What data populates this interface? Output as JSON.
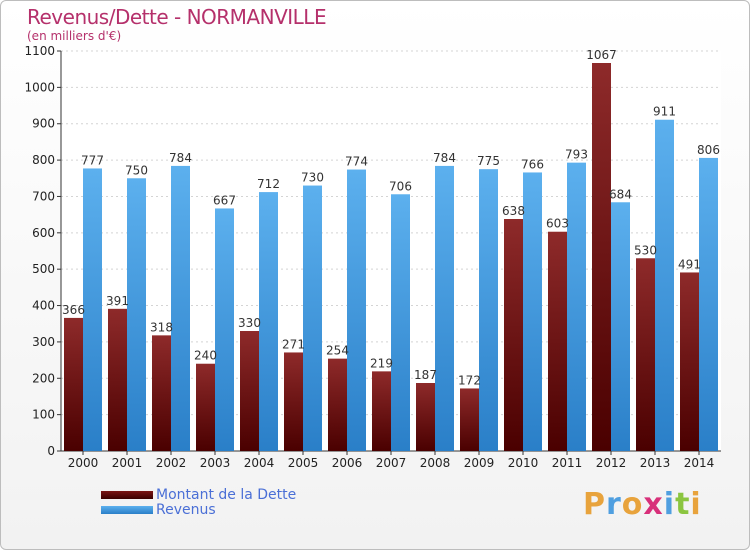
{
  "chart_data": {
    "type": "bar",
    "title": "Revenus/Dette - NORMANVILLE",
    "subtitle": "(en milliers d'€)",
    "categories": [
      "2000",
      "2001",
      "2002",
      "2003",
      "2004",
      "2005",
      "2006",
      "2007",
      "2008",
      "2009",
      "2010",
      "2011",
      "2012",
      "2013",
      "2014"
    ],
    "series": [
      {
        "name": "Montant de la Dette",
        "color": "#7a1515",
        "values": [
          366,
          391,
          318,
          240,
          330,
          271,
          254,
          219,
          187,
          172,
          638,
          603,
          1067,
          530,
          491
        ]
      },
      {
        "name": "Revenus",
        "color": "#4aa3e6",
        "values": [
          777,
          750,
          784,
          667,
          712,
          730,
          774,
          706,
          784,
          775,
          766,
          793,
          684,
          911,
          806
        ]
      }
    ],
    "ylim": [
      0,
      1100
    ],
    "yticks": [
      0,
      100,
      200,
      300,
      400,
      500,
      600,
      700,
      800,
      900,
      1000,
      1100
    ],
    "grid": true,
    "legend": "bottom-left"
  },
  "logo": {
    "letters": [
      {
        "ch": "P",
        "color": "#e8a33c"
      },
      {
        "ch": "r",
        "color": "#4f9fe0"
      },
      {
        "ch": "o",
        "color": "#e8a33c"
      },
      {
        "ch": "x",
        "color": "#d8307a"
      },
      {
        "ch": "i",
        "color": "#4f9fe0"
      },
      {
        "ch": "t",
        "color": "#8bc540"
      },
      {
        "ch": "i",
        "color": "#e8a33c"
      }
    ]
  }
}
